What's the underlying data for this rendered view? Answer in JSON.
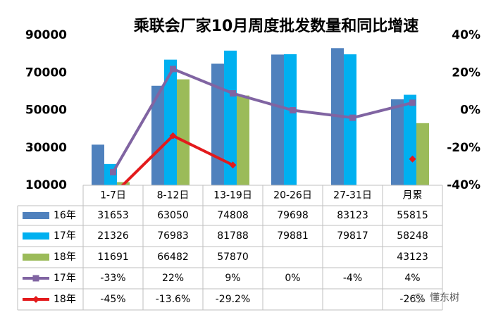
{
  "chart_data": {
    "type": "bar",
    "title": "乘联会厂家10月周度批发数量和同比增速",
    "categories": [
      "1-7日",
      "8-12日",
      "13-19日",
      "20-26日",
      "27-31日",
      "月累"
    ],
    "ylim": [
      10000,
      90000
    ],
    "yticks": [
      10000,
      30000,
      50000,
      70000,
      90000
    ],
    "y2lim": [
      -40,
      40
    ],
    "y2ticks": [
      {
        "value": -40,
        "label": "-40%"
      },
      {
        "value": -20,
        "label": "-20%"
      },
      {
        "value": 0,
        "label": "0%"
      },
      {
        "value": 20,
        "label": "20%"
      },
      {
        "value": 40,
        "label": "40%"
      }
    ],
    "series": [
      {
        "name": "16年",
        "type": "bar",
        "color": "#4f81bd",
        "values": [
          31653,
          63050,
          74808,
          79698,
          83123,
          55815
        ]
      },
      {
        "name": "17年",
        "type": "bar",
        "color": "#00b0f0",
        "values": [
          21326,
          76983,
          81788,
          79881,
          79817,
          58248
        ]
      },
      {
        "name": "18年",
        "type": "bar",
        "color": "#9bbb59",
        "values": [
          11691,
          66482,
          57870,
          null,
          null,
          43123
        ]
      },
      {
        "name": "17年",
        "type": "line",
        "axis": "y2",
        "marker": "square",
        "color": "#8064a2",
        "values": [
          -33,
          22,
          9,
          0,
          -4,
          4
        ],
        "value_labels": [
          "-33%",
          "22%",
          "9%",
          "0%",
          "-4%",
          "4%"
        ]
      },
      {
        "name": "18年",
        "type": "line",
        "axis": "y2",
        "marker": "diamond",
        "color": "#e31a1c",
        "values": [
          -45,
          -13.6,
          -29.2,
          null,
          null,
          -26
        ],
        "value_labels": [
          "-45%",
          "-13.6%",
          "-29.2%",
          null,
          null,
          "-26%"
        ]
      }
    ],
    "watermark": "懂东树"
  }
}
